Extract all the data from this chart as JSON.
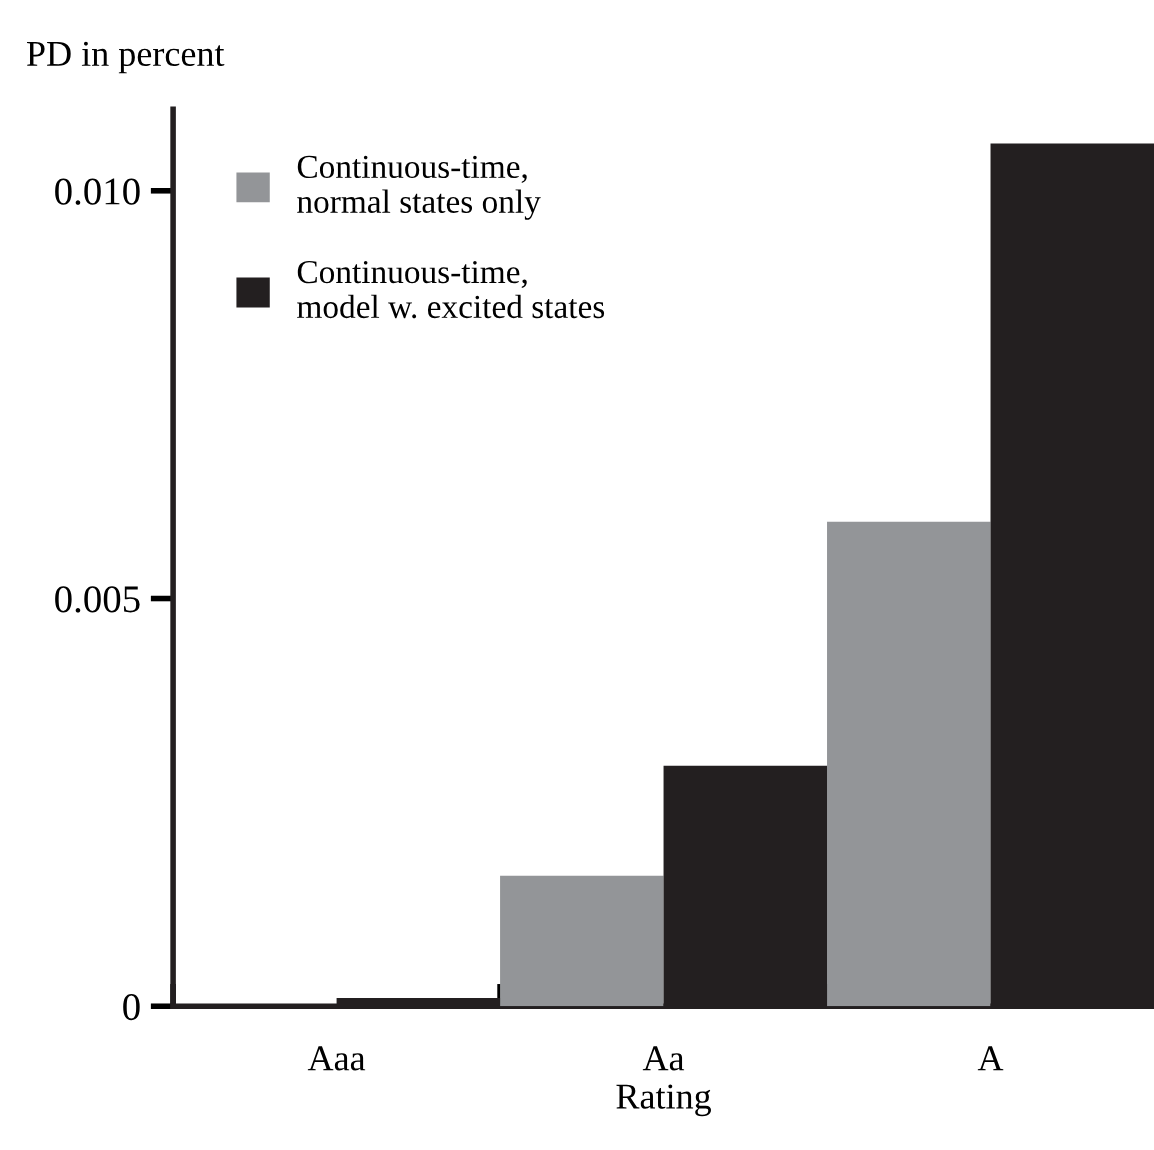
{
  "chart_data": {
    "type": "bar",
    "ylabel": "PD in percent",
    "xlabel": "Rating",
    "categories": [
      "Aaa",
      "Aa",
      "A"
    ],
    "series": [
      {
        "name": "Continuous-time,\nnormal states only",
        "color": "#939598",
        "values": [
          0,
          0.0016,
          0.00594
        ]
      },
      {
        "name": "Continuous-time,\nmodel w. excited states",
        "color": "#231f20",
        "values": [
          0.0001,
          0.00295,
          0.01058
        ]
      }
    ],
    "ylim": [
      0,
      0.011
    ],
    "yticks": [
      0,
      {
        "value": 0.005,
        "label": "0.005"
      },
      {
        "value": 0.01,
        "label": "0.010"
      }
    ],
    "legend": "top left",
    "grid": false
  }
}
